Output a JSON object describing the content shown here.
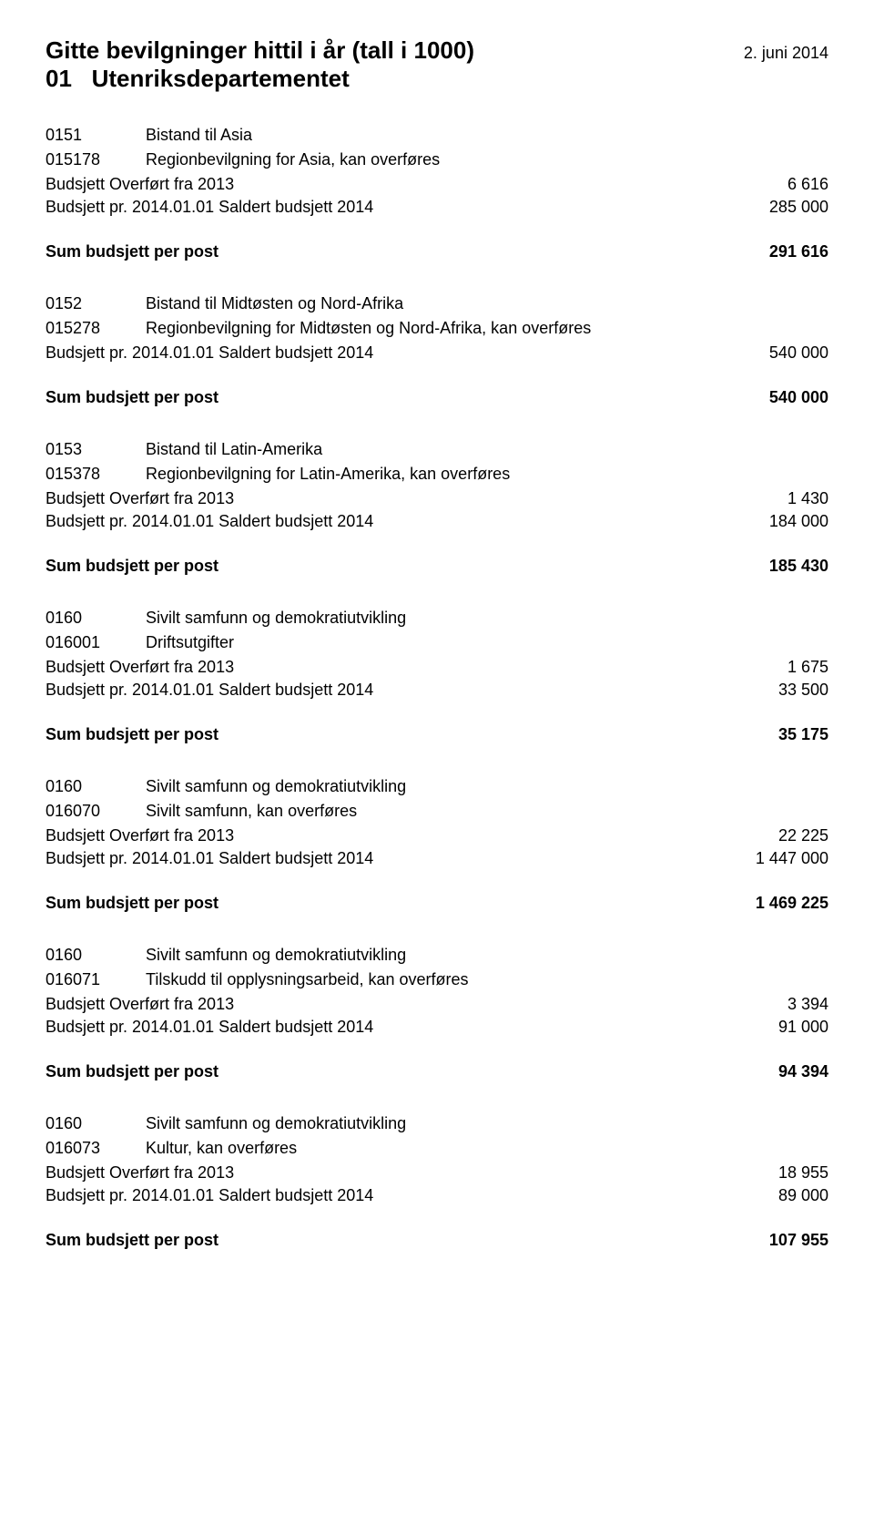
{
  "header": {
    "title": "Gitte bevilgninger hittil i år (tall i 1000)",
    "date": "2. juni 2014",
    "subtitle_code": "01",
    "subtitle_text": "Utenriksdepartementet"
  },
  "sum_label": "Sum  budsjett  per post",
  "blocks": [
    {
      "cat_code": "0151",
      "cat_desc": "Bistand til Asia",
      "sub_code": "015178",
      "sub_desc": "Regionbevilgning for Asia, kan overføres",
      "lines": [
        {
          "label": "Budsjett Overført fra 2013",
          "value": "6 616"
        },
        {
          "label": "Budsjett pr. 2014.01.01 Saldert budsjett 2014",
          "value": "285 000"
        }
      ],
      "sum": "291 616"
    },
    {
      "cat_code": "0152",
      "cat_desc": "Bistand til Midtøsten og Nord-Afrika",
      "sub_code": "015278",
      "sub_desc": "Regionbevilgning for Midtøsten og Nord-Afrika, kan overføres",
      "lines": [
        {
          "label": "Budsjett pr. 2014.01.01 Saldert budsjett 2014",
          "value": "540 000"
        }
      ],
      "sum": "540 000"
    },
    {
      "cat_code": "0153",
      "cat_desc": "Bistand til Latin-Amerika",
      "sub_code": "015378",
      "sub_desc": "Regionbevilgning for Latin-Amerika, kan overføres",
      "lines": [
        {
          "label": "Budsjett Overført fra 2013",
          "value": "1 430"
        },
        {
          "label": "Budsjett pr. 2014.01.01 Saldert budsjett 2014",
          "value": "184 000"
        }
      ],
      "sum": "185 430"
    },
    {
      "cat_code": "0160",
      "cat_desc": "Sivilt samfunn og demokratiutvikling",
      "sub_code": "016001",
      "sub_desc": "Driftsutgifter",
      "lines": [
        {
          "label": "Budsjett Overført fra 2013",
          "value": "1 675"
        },
        {
          "label": "Budsjett pr. 2014.01.01 Saldert budsjett 2014",
          "value": "33 500"
        }
      ],
      "sum": "35 175"
    },
    {
      "cat_code": "0160",
      "cat_desc": "Sivilt samfunn og demokratiutvikling",
      "sub_code": "016070",
      "sub_desc": "Sivilt samfunn, kan overføres",
      "lines": [
        {
          "label": "Budsjett Overført fra 2013",
          "value": "22 225"
        },
        {
          "label": "Budsjett pr. 2014.01.01 Saldert budsjett 2014",
          "value": "1 447 000"
        }
      ],
      "sum": "1 469 225"
    },
    {
      "cat_code": "0160",
      "cat_desc": "Sivilt samfunn og demokratiutvikling",
      "sub_code": "016071",
      "sub_desc": "Tilskudd til opplysningsarbeid, kan overføres",
      "lines": [
        {
          "label": "Budsjett Overført fra 2013",
          "value": "3 394"
        },
        {
          "label": "Budsjett pr. 2014.01.01 Saldert budsjett 2014",
          "value": "91 000"
        }
      ],
      "sum": "94 394"
    },
    {
      "cat_code": "0160",
      "cat_desc": "Sivilt samfunn og demokratiutvikling",
      "sub_code": "016073",
      "sub_desc": "Kultur, kan overføres",
      "lines": [
        {
          "label": "Budsjett Overført fra 2013",
          "value": "18 955"
        },
        {
          "label": "Budsjett pr. 2014.01.01 Saldert budsjett 2014",
          "value": "89 000"
        }
      ],
      "sum": "107 955"
    }
  ]
}
